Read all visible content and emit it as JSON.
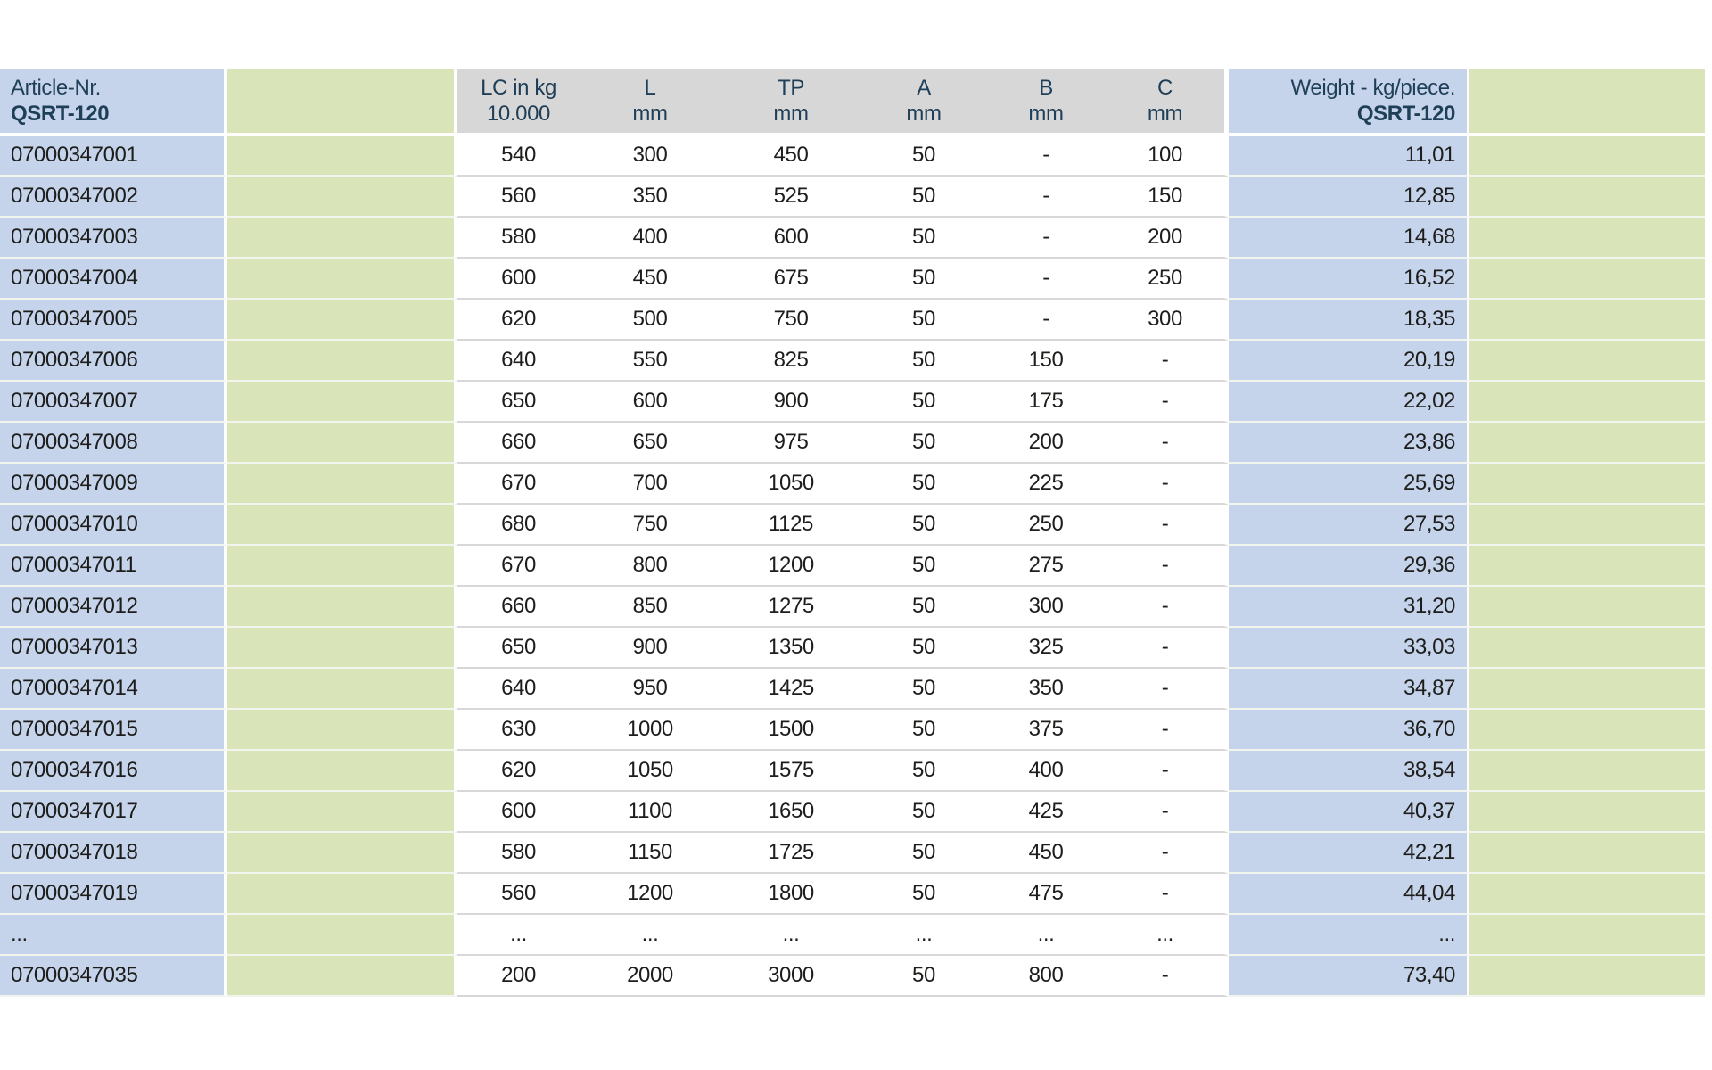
{
  "colors": {
    "cell-blue": "#c5d4eb",
    "cell-green": "#d9e4b9",
    "header-gray": "#d7d7d7",
    "header-text": "#1f3f58",
    "body-text": "#1d1d1b",
    "divider-on-white": "#d8d8d8",
    "divider-on-color": "#f2f5ee",
    "page-bg": "#ffffff"
  },
  "table": {
    "header": {
      "article_line1": "Article-Nr.",
      "article_line2": "QSRT-120",
      "columns": [
        {
          "line1": "LC in kg",
          "line2": "10.000"
        },
        {
          "line1": "L",
          "line2": "mm"
        },
        {
          "line1": "TP",
          "line2": "mm"
        },
        {
          "line1": "A",
          "line2": "mm"
        },
        {
          "line1": "B",
          "line2": "mm"
        },
        {
          "line1": "C",
          "line2": "mm"
        }
      ],
      "weight_line1": "Weight - kg/piece.",
      "weight_line2": "QSRT-120"
    },
    "rows": [
      {
        "article": "07000347001",
        "lc": "540",
        "l": "300",
        "tp": "450",
        "a": "50",
        "b": "-",
        "c": "100",
        "weight": "11,01"
      },
      {
        "article": "07000347002",
        "lc": "560",
        "l": "350",
        "tp": "525",
        "a": "50",
        "b": "-",
        "c": "150",
        "weight": "12,85"
      },
      {
        "article": "07000347003",
        "lc": "580",
        "l": "400",
        "tp": "600",
        "a": "50",
        "b": "-",
        "c": "200",
        "weight": "14,68"
      },
      {
        "article": "07000347004",
        "lc": "600",
        "l": "450",
        "tp": "675",
        "a": "50",
        "b": "-",
        "c": "250",
        "weight": "16,52"
      },
      {
        "article": "07000347005",
        "lc": "620",
        "l": "500",
        "tp": "750",
        "a": "50",
        "b": "-",
        "c": "300",
        "weight": "18,35"
      },
      {
        "article": "07000347006",
        "lc": "640",
        "l": "550",
        "tp": "825",
        "a": "50",
        "b": "150",
        "c": "-",
        "weight": "20,19"
      },
      {
        "article": "07000347007",
        "lc": "650",
        "l": "600",
        "tp": "900",
        "a": "50",
        "b": "175",
        "c": "-",
        "weight": "22,02"
      },
      {
        "article": "07000347008",
        "lc": "660",
        "l": "650",
        "tp": "975",
        "a": "50",
        "b": "200",
        "c": "-",
        "weight": "23,86"
      },
      {
        "article": "07000347009",
        "lc": "670",
        "l": "700",
        "tp": "1050",
        "a": "50",
        "b": "225",
        "c": "-",
        "weight": "25,69"
      },
      {
        "article": "07000347010",
        "lc": "680",
        "l": "750",
        "tp": "1125",
        "a": "50",
        "b": "250",
        "c": "-",
        "weight": "27,53"
      },
      {
        "article": "07000347011",
        "lc": "670",
        "l": "800",
        "tp": "1200",
        "a": "50",
        "b": "275",
        "c": "-",
        "weight": "29,36"
      },
      {
        "article": "07000347012",
        "lc": "660",
        "l": "850",
        "tp": "1275",
        "a": "50",
        "b": "300",
        "c": "-",
        "weight": "31,20"
      },
      {
        "article": "07000347013",
        "lc": "650",
        "l": "900",
        "tp": "1350",
        "a": "50",
        "b": "325",
        "c": "-",
        "weight": "33,03"
      },
      {
        "article": "07000347014",
        "lc": "640",
        "l": "950",
        "tp": "1425",
        "a": "50",
        "b": "350",
        "c": "-",
        "weight": "34,87"
      },
      {
        "article": "07000347015",
        "lc": "630",
        "l": "1000",
        "tp": "1500",
        "a": "50",
        "b": "375",
        "c": "-",
        "weight": "36,70"
      },
      {
        "article": "07000347016",
        "lc": "620",
        "l": "1050",
        "tp": "1575",
        "a": "50",
        "b": "400",
        "c": "-",
        "weight": "38,54"
      },
      {
        "article": "07000347017",
        "lc": "600",
        "l": "1100",
        "tp": "1650",
        "a": "50",
        "b": "425",
        "c": "-",
        "weight": "40,37"
      },
      {
        "article": "07000347018",
        "lc": "580",
        "l": "1150",
        "tp": "1725",
        "a": "50",
        "b": "450",
        "c": "-",
        "weight": "42,21"
      },
      {
        "article": "07000347019",
        "lc": "560",
        "l": "1200",
        "tp": "1800",
        "a": "50",
        "b": "475",
        "c": "-",
        "weight": "44,04"
      },
      {
        "article": "...",
        "lc": "...",
        "l": "...",
        "tp": "...",
        "a": "...",
        "b": "...",
        "c": "...",
        "weight": "..."
      },
      {
        "article": "07000347035",
        "lc": "200",
        "l": "2000",
        "tp": "3000",
        "a": "50",
        "b": "800",
        "c": "-",
        "weight": "73,40"
      }
    ]
  }
}
